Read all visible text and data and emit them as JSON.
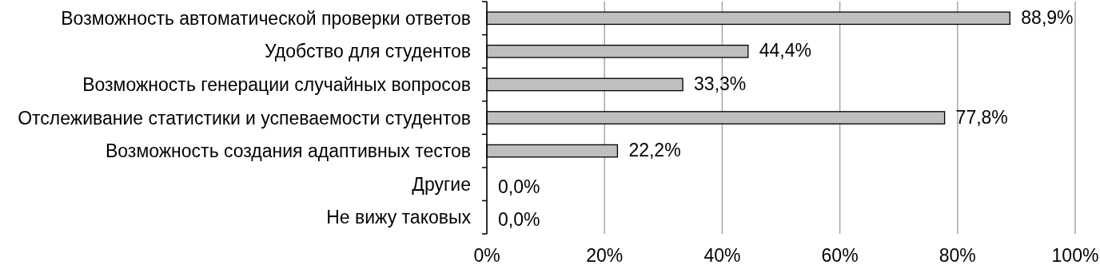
{
  "chart_data": {
    "type": "bar",
    "orientation": "horizontal",
    "categories": [
      "Возможность автоматической проверки ответов",
      "Удобство для студентов",
      "Возможность генерации случайных вопросов",
      "Отслеживание статистики и успеваемости студентов",
      "Возможность создания адаптивных тестов",
      "Другие",
      "Не вижу таковых"
    ],
    "values": [
      88.9,
      44.4,
      33.3,
      77.8,
      22.2,
      0,
      0
    ],
    "value_labels": [
      "88,9%",
      "44,4%",
      "33,3%",
      "77,8%",
      "22,2%",
      "0,0%",
      "0,0%"
    ],
    "color": "#bfbfbf",
    "xlim": [
      0,
      100
    ],
    "xticks": [
      {
        "value": 0,
        "label": "0%"
      },
      {
        "value": 20,
        "label": "20%"
      },
      {
        "value": 40,
        "label": "40%"
      },
      {
        "value": 60,
        "label": "60%"
      },
      {
        "value": 80,
        "label": "80%"
      },
      {
        "value": 100,
        "label": "100%"
      }
    ],
    "grid": "x"
  }
}
